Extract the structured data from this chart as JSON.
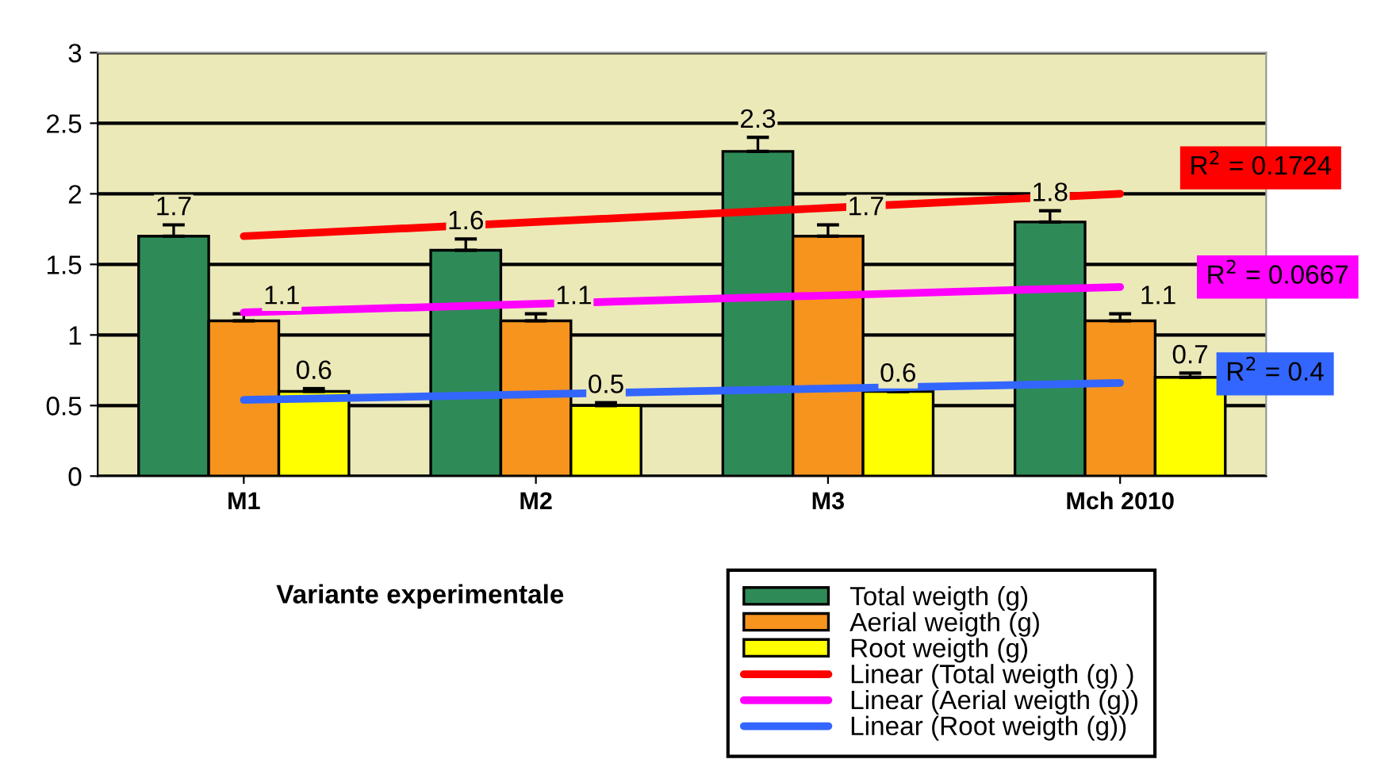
{
  "chart_data": {
    "type": "bar",
    "categories": [
      "M1",
      "M2",
      "M3",
      "Mch 2010"
    ],
    "xlabel": "Variante experimentale",
    "series": [
      {
        "name": "Total weigth (g)",
        "color": "#2e8b57",
        "values": [
          1.7,
          1.6,
          2.3,
          1.8
        ],
        "value_labels": [
          "1.7",
          "1.6",
          "2.3",
          "1.8"
        ],
        "errors": [
          0.08,
          0.08,
          0.1,
          0.08
        ]
      },
      {
        "name": "Aerial weigth (g)",
        "color": "#f7941d",
        "values": [
          1.1,
          1.1,
          1.7,
          1.1
        ],
        "value_labels": [
          "1.1",
          "1.1",
          "1.7",
          "1.1"
        ],
        "errors": [
          0.05,
          0.05,
          0.08,
          0.05
        ]
      },
      {
        "name": "Root weigth (g)",
        "color": "#ffff00",
        "values": [
          0.6,
          0.5,
          0.6,
          0.7
        ],
        "value_labels": [
          "0.6",
          "0.5",
          "0.6",
          "0.7"
        ],
        "errors": [
          0.02,
          0.02,
          0.0,
          0.03
        ]
      },
      {
        "name": "Linear (Total weigth (g) )",
        "type": "line",
        "color": "#ff0000",
        "values": [
          1.7,
          1.8,
          1.9,
          2.0
        ]
      },
      {
        "name": "Linear (Aerial weigth (g))",
        "type": "line",
        "color": "#ff00ff",
        "values": [
          1.16,
          1.22,
          1.28,
          1.34
        ]
      },
      {
        "name": "Linear (Root weigth (g))",
        "type": "line",
        "color": "#3366ff",
        "values": [
          0.54,
          0.58,
          0.62,
          0.66
        ]
      }
    ],
    "ylim": [
      0,
      3
    ],
    "yticks": [
      0,
      0.5,
      1,
      1.5,
      2,
      2.5,
      3
    ],
    "grid": "y",
    "legend": "bottom right",
    "marker": "none",
    "annotations": [
      "R$^{2}$ = 0.1724",
      "R$^{2}$ = 0.0667",
      "R$^{2}$ = 0.4"
    ]
  }
}
